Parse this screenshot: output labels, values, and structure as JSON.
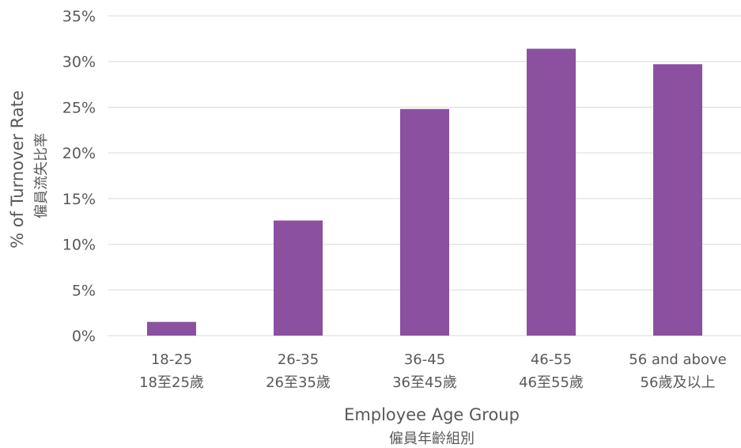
{
  "chart_data": {
    "type": "bar",
    "categories": [
      "18-25",
      "26-35",
      "36-45",
      "46-55",
      "56 and above"
    ],
    "categories_zh": [
      "18至25歲",
      "26至35歲",
      "36至45歲",
      "46至55歲",
      "56歲及以上"
    ],
    "values": [
      1.5,
      12.6,
      24.8,
      31.4,
      29.7
    ],
    "ylim": [
      0,
      35
    ],
    "yticks": [
      "0%",
      "5%",
      "10%",
      "15%",
      "20%",
      "25%",
      "30%",
      "35%"
    ],
    "ylabel": "% of Turnover Rate",
    "ylabel_zh": "僱員流失比率",
    "xlabel": "Employee Age Group",
    "xlabel_zh": "僱員年齡組別",
    "grid": true,
    "legend": "none",
    "bar_color": "#8b50a0"
  }
}
